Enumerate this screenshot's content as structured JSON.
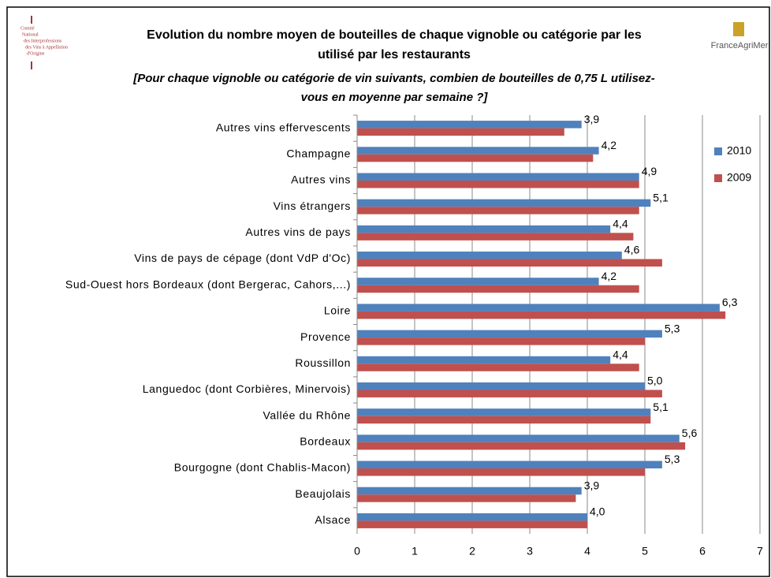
{
  "chart_data": {
    "type": "hbar",
    "title": [
      "Evolution du nombre moyen de bouteilles de chaque vignoble ou catégorie par les",
      "utilisé par les restaurants"
    ],
    "subtitle": [
      "[Pour chaque vignoble ou catégorie de vin suivants, combien de bouteilles de 0,75 L utilisez-",
      "vous en moyenne par semaine ?]"
    ],
    "categories": [
      "Autres vins effervescents",
      "Champagne",
      "Autres vins",
      "Vins étrangers",
      "Autres vins de pays",
      "Vins de pays de cépage (dont VdP d'Oc)",
      "Sud-Ouest hors Bordeaux (dont Bergerac, Cahors,...)",
      "Loire",
      "Provence",
      "Roussillon",
      "Languedoc (dont Corbières, Minervois)",
      "Vallée du Rhône",
      "Bordeaux",
      "Bourgogne (dont Chablis-Macon)",
      "Beaujolais",
      "Alsace"
    ],
    "series": [
      {
        "name": "2010",
        "color": "#4f81bd",
        "values": [
          3.9,
          4.2,
          4.9,
          5.1,
          4.4,
          4.6,
          4.2,
          6.3,
          5.3,
          4.4,
          5.0,
          5.1,
          5.6,
          5.3,
          3.9,
          4.0
        ],
        "value_labels": [
          "3,9",
          "4,2",
          "4,9",
          "5,1",
          "4,4",
          "4,6",
          "4,2",
          "6,3",
          "5,3",
          "4,4",
          "5,0",
          "5,1",
          "5,6",
          "5,3",
          "3,9",
          "4,0"
        ]
      },
      {
        "name": "2009",
        "color": "#c0504d",
        "values": [
          3.6,
          4.1,
          4.9,
          4.9,
          4.8,
          5.3,
          4.9,
          6.4,
          5.0,
          4.9,
          5.3,
          5.1,
          5.7,
          5.0,
          3.8,
          4.0
        ]
      }
    ],
    "xlim": [
      0,
      7
    ],
    "xticks": [
      0,
      1,
      2,
      3,
      4,
      5,
      6,
      7
    ],
    "grid": true,
    "legend": "right"
  },
  "logos": {
    "left": [
      "Comité",
      "National",
      "des Interprofessions",
      "des Vins à Appellation",
      "d'Origine"
    ],
    "right": "FranceAgriMer"
  }
}
